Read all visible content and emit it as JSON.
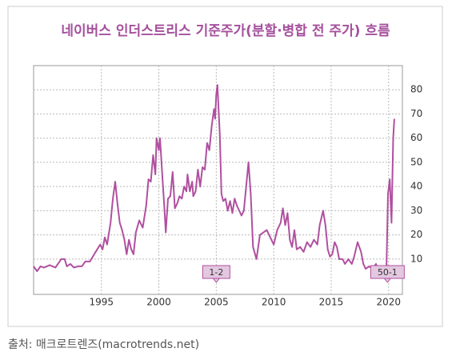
{
  "chart_data": {
    "type": "line",
    "title": "네이버스 인더스트리스 기준주가(분할·병합 전 주가) 흐름",
    "x": [
      1989.1,
      1989.4,
      1989.7,
      1990,
      1990.5,
      1991,
      1991.5,
      1991.8,
      1992,
      1992.3,
      1992.6,
      1993,
      1993.3,
      1993.6,
      1994,
      1994.5,
      1994.9,
      1995.1,
      1995.3,
      1995.5,
      1995.8,
      1996,
      1996.2,
      1996.4,
      1996.6,
      1996.8,
      1997,
      1997.2,
      1997.4,
      1997.6,
      1997.8,
      1998,
      1998.3,
      1998.6,
      1998.9,
      1999.1,
      1999.3,
      1999.5,
      1999.7,
      1999.8,
      2000,
      2000.1,
      2000.3,
      2000.5,
      2000.6,
      2000.8,
      2001,
      2001.2,
      2001.4,
      2001.6,
      2001.8,
      2002,
      2002.2,
      2002.4,
      2002.5,
      2002.7,
      2002.9,
      2003,
      2003.2,
      2003.4,
      2003.6,
      2003.8,
      2004,
      2004.2,
      2004.4,
      2004.6,
      2004.8,
      2004.9,
      2005,
      2005.1,
      2005.2,
      2005.3,
      2005.45,
      2005.6,
      2005.8,
      2006,
      2006.2,
      2006.4,
      2006.6,
      2006.8,
      2007,
      2007.2,
      2007.4,
      2007.6,
      2007.8,
      2008,
      2008.2,
      2008.5,
      2008.8,
      2009.1,
      2009.4,
      2009.7,
      2010,
      2010.3,
      2010.6,
      2010.8,
      2011,
      2011.2,
      2011.4,
      2011.6,
      2011.8,
      2012,
      2012.3,
      2012.6,
      2012.9,
      2013.2,
      2013.5,
      2013.8,
      2014,
      2014.3,
      2014.5,
      2014.7,
      2014.9,
      2015.1,
      2015.3,
      2015.5,
      2015.7,
      2016,
      2016.2,
      2016.5,
      2016.8,
      2017,
      2017.3,
      2017.6,
      2017.8,
      2018,
      2018.3,
      2018.6,
      2018.9,
      2019.2,
      2019.4,
      2019.6,
      2019.8,
      2019.95,
      2020.1,
      2020.25,
      2020.4,
      2020.5
    ],
    "series": [
      {
        "color": "#b0509f",
        "values": [
          7,
          5,
          7,
          6.5,
          7.5,
          6.5,
          10,
          10,
          7,
          8,
          6.5,
          7,
          7,
          9,
          9,
          13,
          16,
          14,
          19,
          16,
          25,
          35,
          42,
          33,
          25,
          22,
          18,
          12,
          18,
          14,
          12,
          21,
          26,
          23,
          32,
          43,
          42,
          53,
          45,
          60,
          55,
          60,
          45,
          30,
          21,
          35,
          36,
          46,
          31,
          33,
          36,
          35,
          40,
          38,
          45,
          38,
          42,
          36,
          38,
          47,
          40,
          48,
          47,
          58,
          55,
          65,
          72,
          68,
          78,
          82,
          72,
          62,
          37,
          34,
          35,
          30,
          34,
          29,
          35,
          32,
          30,
          28,
          30,
          40,
          50,
          37,
          15,
          10,
          20,
          21,
          22,
          19,
          16,
          22,
          25,
          31,
          24,
          29,
          18,
          15,
          22,
          14,
          15,
          13,
          17,
          15,
          18,
          16,
          24,
          30,
          24,
          14,
          11,
          12,
          17,
          15,
          10,
          10,
          8,
          10,
          8,
          11,
          17,
          13,
          8,
          6,
          7,
          6,
          8,
          4,
          3,
          4,
          3,
          37,
          43,
          25,
          60,
          68
        ]
      }
    ],
    "xlim": [
      1989.1,
      2021.2
    ],
    "ylim": [
      -4.6,
      90
    ],
    "xticks": [
      1995,
      2000,
      2005,
      2010,
      2015,
      2020
    ],
    "yticks": [
      10,
      20,
      30,
      40,
      50,
      60,
      70,
      80
    ],
    "grid": true,
    "annotations": [
      {
        "text": "1-2",
        "x": 2005
      },
      {
        "text": "50-1",
        "x": 2019.9
      }
    ]
  },
  "source": "출처: 매크로트렌즈(macrotrends.net)"
}
